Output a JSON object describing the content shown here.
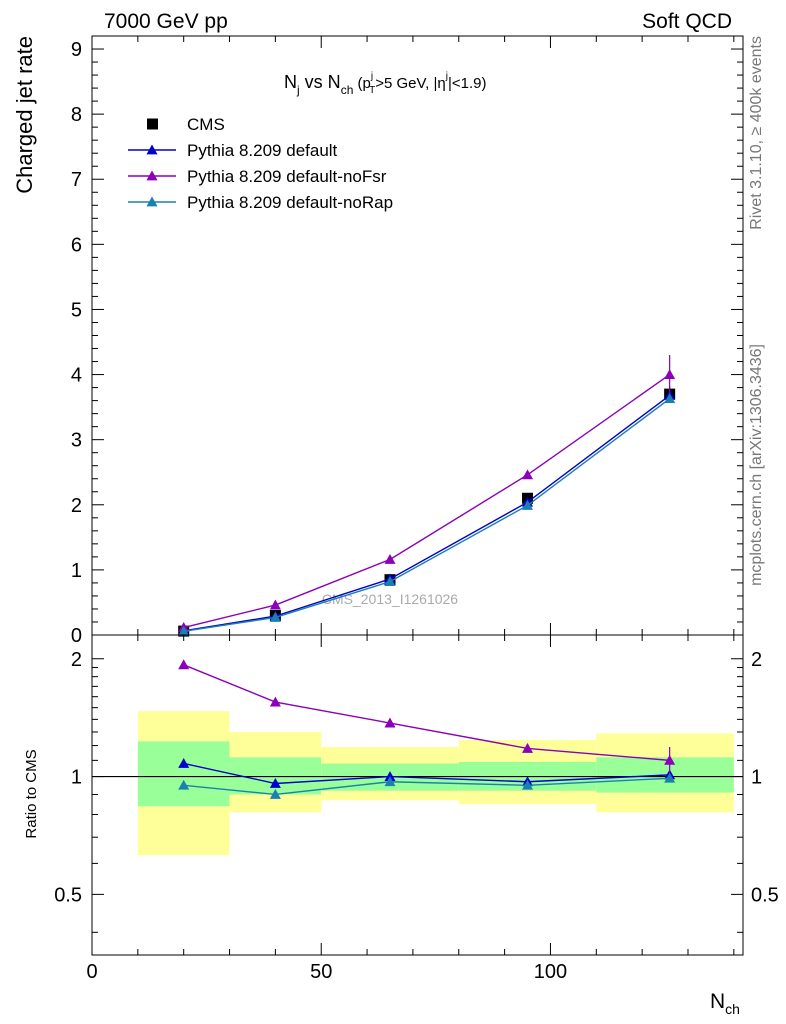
{
  "header": {
    "left": "7000 GeV pp",
    "right": "Soft QCD"
  },
  "side_labels": {
    "rivet": "Rivet 3.1.10, ≥ 400k events",
    "mcplots": "mcplots.cern.ch [arXiv:1306.3436]"
  },
  "watermark": "CMS_2013_I1261026",
  "colors": {
    "data": "#000000",
    "default": "#0000cc",
    "noFsr": "#8b00b8",
    "noRap": "#1a80b0",
    "band_inner": "#99ff99",
    "band_outer": "#ffff99"
  },
  "chart_data": [
    {
      "type": "line",
      "title": {
        "N": "N",
        "j": "j",
        "vs": " vs N",
        "ch": "ch",
        "rest1": " (p",
        "pj": "j",
        "pT": "T",
        "rest2": ">5 GeV, |η",
        "etaj": "j",
        "rest3": "|<1.9)"
      },
      "ylabel": "Charged jet rate",
      "xlim": [
        0,
        142
      ],
      "ylim": [
        0,
        9.2
      ],
      "yticks": [
        "0",
        "1",
        "2",
        "3",
        "4",
        "5",
        "6",
        "7",
        "8",
        "9"
      ],
      "legend_placement": "top-left",
      "x": [
        20,
        40,
        65,
        95,
        126
      ],
      "series": [
        {
          "name": "CMS",
          "key": "data",
          "values": [
            0.06,
            0.3,
            0.85,
            2.1,
            3.7
          ],
          "err": [
            0.02,
            0.03,
            0.05,
            0.08,
            0.12
          ]
        },
        {
          "name": "Pythia 8.209 default",
          "key": "default",
          "values": [
            0.065,
            0.29,
            0.86,
            2.04,
            3.68
          ],
          "err": [
            0,
            0,
            0,
            0,
            0.05
          ]
        },
        {
          "name": "Pythia 8.209 default-noFsr",
          "key": "noFsr",
          "values": [
            0.115,
            0.46,
            1.16,
            2.46,
            4.0
          ],
          "err": [
            0,
            0,
            0,
            0,
            0.3
          ]
        },
        {
          "name": "Pythia 8.209 default-noRap",
          "key": "noRap",
          "values": [
            0.057,
            0.27,
            0.82,
            1.99,
            3.63
          ],
          "err": [
            0,
            0,
            0,
            0,
            0.05
          ]
        }
      ]
    },
    {
      "type": "line",
      "ylabel": "Ratio to CMS",
      "xlabel": {
        "N": "N",
        "ch": "ch"
      },
      "xlim": [
        0,
        142
      ],
      "ylim_log": [
        0.35,
        2.3
      ],
      "yticks": [
        {
          "v": 0.5,
          "label": "0.5"
        },
        {
          "v": 1,
          "label": "1"
        },
        {
          "v": 2,
          "label": "2"
        }
      ],
      "xticks": [
        {
          "v": 0,
          "label": "0"
        },
        {
          "v": 50,
          "label": "50"
        },
        {
          "v": 100,
          "label": "100"
        }
      ],
      "bands": [
        {
          "x0": 10,
          "x1": 30,
          "inner": [
            0.84,
            1.23
          ],
          "outer": [
            0.63,
            1.47
          ]
        },
        {
          "x0": 30,
          "x1": 50,
          "inner": [
            0.9,
            1.12
          ],
          "outer": [
            0.81,
            1.3
          ]
        },
        {
          "x0": 50,
          "x1": 80,
          "inner": [
            0.92,
            1.08
          ],
          "outer": [
            0.87,
            1.19
          ]
        },
        {
          "x0": 80,
          "x1": 110,
          "inner": [
            0.92,
            1.09
          ],
          "outer": [
            0.85,
            1.24
          ]
        },
        {
          "x0": 110,
          "x1": 140,
          "inner": [
            0.91,
            1.12
          ],
          "outer": [
            0.81,
            1.29
          ]
        }
      ],
      "x": [
        20,
        40,
        65,
        95,
        126
      ],
      "series": [
        {
          "name": "Pythia 8.209 default",
          "key": "default",
          "values": [
            1.08,
            0.96,
            1.0,
            0.97,
            1.01
          ],
          "err": [
            0,
            0,
            0,
            0,
            0.02
          ]
        },
        {
          "name": "Pythia 8.209 default-noFsr",
          "key": "noFsr",
          "values": [
            1.93,
            1.55,
            1.37,
            1.18,
            1.1
          ],
          "err": [
            0,
            0,
            0,
            0,
            0.09
          ]
        },
        {
          "name": "Pythia 8.209 default-noRap",
          "key": "noRap",
          "values": [
            0.95,
            0.9,
            0.97,
            0.95,
            0.99
          ],
          "err": [
            0,
            0,
            0,
            0,
            0.02
          ]
        }
      ]
    }
  ]
}
